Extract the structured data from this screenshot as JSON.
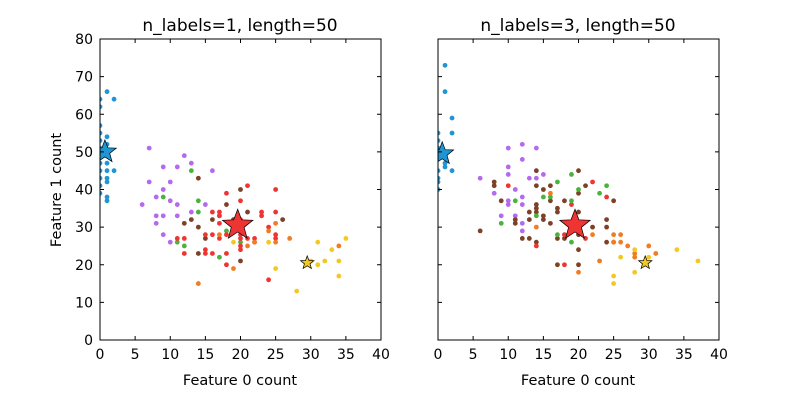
{
  "chart_data": [
    {
      "type": "scatter",
      "title": "n_labels=1, length=50",
      "xlabel": "Feature 0 count",
      "ylabel": "Feature 1 count",
      "xlim": [
        0,
        40
      ],
      "ylim": [
        0,
        80
      ],
      "xticks": [
        "0",
        "5",
        "10",
        "15",
        "20",
        "25",
        "30",
        "35",
        "40"
      ],
      "yticks": [
        "0",
        "10",
        "20",
        "30",
        "40",
        "50",
        "60",
        "70",
        "80"
      ],
      "show_yticklabels": true,
      "grid": false,
      "series": [
        {
          "color": "#1f96d3",
          "points": [
            [
              1,
              66
            ],
            [
              2,
              64
            ],
            [
              0,
              64
            ],
            [
              0,
              62
            ],
            [
              0,
              57
            ],
            [
              0,
              55
            ],
            [
              1,
              54
            ],
            [
              0,
              53
            ],
            [
              1,
              52
            ],
            [
              0,
              51
            ],
            [
              0,
              49
            ],
            [
              1,
              47
            ],
            [
              0,
              47
            ],
            [
              1,
              45
            ],
            [
              2,
              45
            ],
            [
              0,
              45
            ],
            [
              1,
              43
            ],
            [
              0,
              43
            ],
            [
              1,
              42
            ],
            [
              0,
              41
            ],
            [
              1,
              38
            ],
            [
              1,
              37
            ],
            [
              0,
              39
            ]
          ]
        },
        {
          "color": "#b36aef",
          "points": [
            [
              7,
              51
            ],
            [
              12,
              49
            ],
            [
              13,
              47
            ],
            [
              9,
              46
            ],
            [
              11,
              46
            ],
            [
              16,
              45
            ],
            [
              7,
              42
            ],
            [
              10,
              42
            ],
            [
              9,
              40
            ],
            [
              8,
              38
            ],
            [
              10,
              37
            ],
            [
              6,
              36
            ],
            [
              11,
              36
            ],
            [
              15,
              36
            ],
            [
              13,
              34
            ],
            [
              8,
              33
            ],
            [
              9,
              33
            ],
            [
              11,
              33
            ],
            [
              8,
              31
            ],
            [
              9,
              28
            ],
            [
              10,
              26
            ]
          ]
        },
        {
          "color": "#4bb33b",
          "points": [
            [
              13,
              45
            ],
            [
              9,
              38
            ],
            [
              14,
              37
            ],
            [
              14,
              34
            ],
            [
              17,
              33
            ],
            [
              18,
              29
            ],
            [
              11,
              26
            ],
            [
              12,
              25
            ],
            [
              17,
              22
            ],
            [
              20,
              26
            ]
          ]
        },
        {
          "color": "#7c4126",
          "points": [
            [
              14,
              43
            ],
            [
              20,
              40
            ],
            [
              18,
              36
            ],
            [
              21,
              34
            ],
            [
              12,
              31
            ],
            [
              13,
              32
            ],
            [
              16,
              32
            ],
            [
              19,
              32
            ],
            [
              14,
              30
            ],
            [
              15,
              27
            ],
            [
              14,
              23
            ],
            [
              20,
              21
            ],
            [
              26,
              32
            ]
          ]
        },
        {
          "color": "#ef3434",
          "points": [
            [
              21,
              41
            ],
            [
              25,
              40
            ],
            [
              18,
              39
            ],
            [
              20,
              37
            ],
            [
              16,
              34
            ],
            [
              17,
              34
            ],
            [
              23,
              34
            ],
            [
              23,
              33
            ],
            [
              25,
              34
            ],
            [
              20,
              32
            ],
            [
              17,
              33
            ],
            [
              17,
              31
            ],
            [
              15,
              28
            ],
            [
              16,
              28
            ],
            [
              18,
              28
            ],
            [
              20,
              28
            ],
            [
              22,
              27
            ],
            [
              21,
              27
            ],
            [
              11,
              27
            ],
            [
              12,
              27
            ],
            [
              17,
              27
            ],
            [
              20,
              27
            ],
            [
              22,
              26
            ],
            [
              20,
              25
            ],
            [
              20,
              24
            ],
            [
              15,
              24
            ],
            [
              15,
              23
            ],
            [
              12,
              23
            ],
            [
              16,
              23
            ],
            [
              18,
              23
            ],
            [
              18,
              20
            ],
            [
              24,
              16
            ],
            [
              25,
              27
            ],
            [
              25,
              28
            ],
            [
              24,
              30
            ]
          ]
        },
        {
          "color": "#f07c24",
          "points": [
            [
              25,
              31
            ],
            [
              24,
              29
            ],
            [
              17,
              28
            ],
            [
              21,
              25
            ],
            [
              22,
              26
            ],
            [
              27,
              27
            ],
            [
              25,
              26
            ],
            [
              19,
              19
            ],
            [
              14,
              15
            ],
            [
              34,
              25
            ]
          ]
        },
        {
          "color": "#f4c822",
          "points": [
            [
              19,
              26
            ],
            [
              24,
              26
            ],
            [
              31,
              26
            ],
            [
              35,
              27
            ],
            [
              33,
              24
            ],
            [
              32,
              21
            ],
            [
              31,
              20
            ],
            [
              30,
              21
            ],
            [
              25,
              19
            ],
            [
              34,
              21
            ],
            [
              34,
              17
            ],
            [
              28,
              13
            ]
          ]
        }
      ],
      "centroids": [
        {
          "color": "#1f96d3",
          "x": 0.7,
          "y": 50,
          "size": "medium"
        },
        {
          "color": "#ef3434",
          "x": 19.6,
          "y": 30.5,
          "size": "large"
        },
        {
          "color": "#f4c822",
          "x": 29.5,
          "y": 20.5,
          "size": "small"
        }
      ]
    },
    {
      "type": "scatter",
      "title": "n_labels=3, length=50",
      "xlabel": "Feature 0 count",
      "ylabel": "",
      "xlim": [
        0,
        40
      ],
      "ylim": [
        0,
        80
      ],
      "xticks": [
        "0",
        "5",
        "10",
        "15",
        "20",
        "25",
        "30",
        "35",
        "40"
      ],
      "yticks": [],
      "show_yticklabels": false,
      "grid": false,
      "series": [
        {
          "color": "#1f96d3",
          "points": [
            [
              1,
              73
            ],
            [
              1,
              66
            ],
            [
              2,
              59
            ],
            [
              2,
              55
            ],
            [
              0,
              55
            ],
            [
              0,
              53
            ],
            [
              0,
              51
            ],
            [
              0,
              49
            ],
            [
              1,
              47
            ],
            [
              1,
              46
            ],
            [
              2,
              45
            ],
            [
              0,
              45
            ],
            [
              0,
              43
            ],
            [
              0,
              42
            ],
            [
              0,
              40
            ]
          ]
        },
        {
          "color": "#b36aef",
          "points": [
            [
              10,
              51
            ],
            [
              12,
              52
            ],
            [
              14,
              51
            ],
            [
              12,
              48
            ],
            [
              10,
              46
            ],
            [
              10,
              44
            ],
            [
              6,
              43
            ],
            [
              13,
              43
            ],
            [
              14,
              43
            ],
            [
              15,
              44
            ],
            [
              11,
              40
            ],
            [
              8,
              39
            ],
            [
              10,
              37
            ],
            [
              10,
              36
            ],
            [
              12,
              38
            ],
            [
              12,
              36
            ],
            [
              9,
              33
            ],
            [
              11,
              33
            ],
            [
              12,
              31
            ],
            [
              12,
              29
            ]
          ]
        },
        {
          "color": "#7c4126",
          "points": [
            [
              8,
              42
            ],
            [
              8,
              41
            ],
            [
              20,
              45
            ],
            [
              14,
              45
            ],
            [
              14,
              41
            ],
            [
              16,
              41
            ],
            [
              15,
              40
            ],
            [
              9,
              37
            ],
            [
              16,
              37
            ],
            [
              18,
              37
            ],
            [
              14,
              36
            ],
            [
              14,
              35
            ],
            [
              14,
              34
            ],
            [
              17,
              35
            ],
            [
              17,
              34
            ],
            [
              13,
              34
            ],
            [
              15,
              33
            ],
            [
              15,
              32
            ],
            [
              11,
              32
            ],
            [
              11,
              31
            ],
            [
              13,
              32
            ],
            [
              16,
              31
            ],
            [
              6,
              29
            ],
            [
              12,
              27
            ],
            [
              13,
              27
            ],
            [
              14,
              26
            ],
            [
              17,
              27
            ],
            [
              18,
              27
            ],
            [
              20,
              34
            ],
            [
              22,
              30
            ],
            [
              24,
              32
            ],
            [
              24,
              30
            ],
            [
              24,
              26
            ],
            [
              20,
              24
            ],
            [
              17,
              20
            ],
            [
              20,
              20
            ],
            [
              25,
              37
            ],
            [
              20,
              39
            ],
            [
              21,
              41
            ],
            [
              20,
              28
            ]
          ]
        },
        {
          "color": "#ef3434",
          "points": [
            [
              10,
              41
            ],
            [
              22,
              42
            ],
            [
              24,
              38
            ],
            [
              19,
              36
            ],
            [
              18,
              28
            ],
            [
              21,
              27
            ],
            [
              14,
              25
            ],
            [
              18,
              20
            ],
            [
              25,
              26
            ]
          ]
        },
        {
          "color": "#4bb33b",
          "points": [
            [
              17,
              42
            ],
            [
              19,
              44
            ],
            [
              20,
              40
            ],
            [
              23,
              39
            ],
            [
              24,
              41
            ],
            [
              15,
              38
            ],
            [
              16,
              38
            ],
            [
              11,
              37
            ],
            [
              19,
              37
            ],
            [
              14,
              33
            ],
            [
              9,
              31
            ],
            [
              17,
              28
            ],
            [
              19,
              26
            ]
          ]
        },
        {
          "color": "#f07c24",
          "points": [
            [
              16,
              39
            ],
            [
              14,
              30
            ],
            [
              22,
              28
            ],
            [
              25,
              28
            ],
            [
              26,
              28
            ],
            [
              25,
              26
            ],
            [
              26,
              26
            ],
            [
              27,
              25
            ],
            [
              28,
              23
            ],
            [
              28,
              22
            ],
            [
              30,
              25
            ],
            [
              31,
              23
            ],
            [
              23,
              21
            ],
            [
              20,
              18
            ]
          ]
        },
        {
          "color": "#f4c822",
          "points": [
            [
              26,
              22
            ],
            [
              28,
              24
            ],
            [
              30,
              22
            ],
            [
              34,
              24
            ],
            [
              37,
              21
            ],
            [
              25,
              17
            ],
            [
              28,
              18
            ],
            [
              25,
              15
            ]
          ]
        }
      ],
      "centroids": [
        {
          "color": "#1f96d3",
          "x": 0.6,
          "y": 49.5,
          "size": "medium"
        },
        {
          "color": "#ef3434",
          "x": 19.5,
          "y": 30.5,
          "size": "large"
        },
        {
          "color": "#f4c822",
          "x": 29.5,
          "y": 20.5,
          "size": "small"
        }
      ]
    }
  ]
}
